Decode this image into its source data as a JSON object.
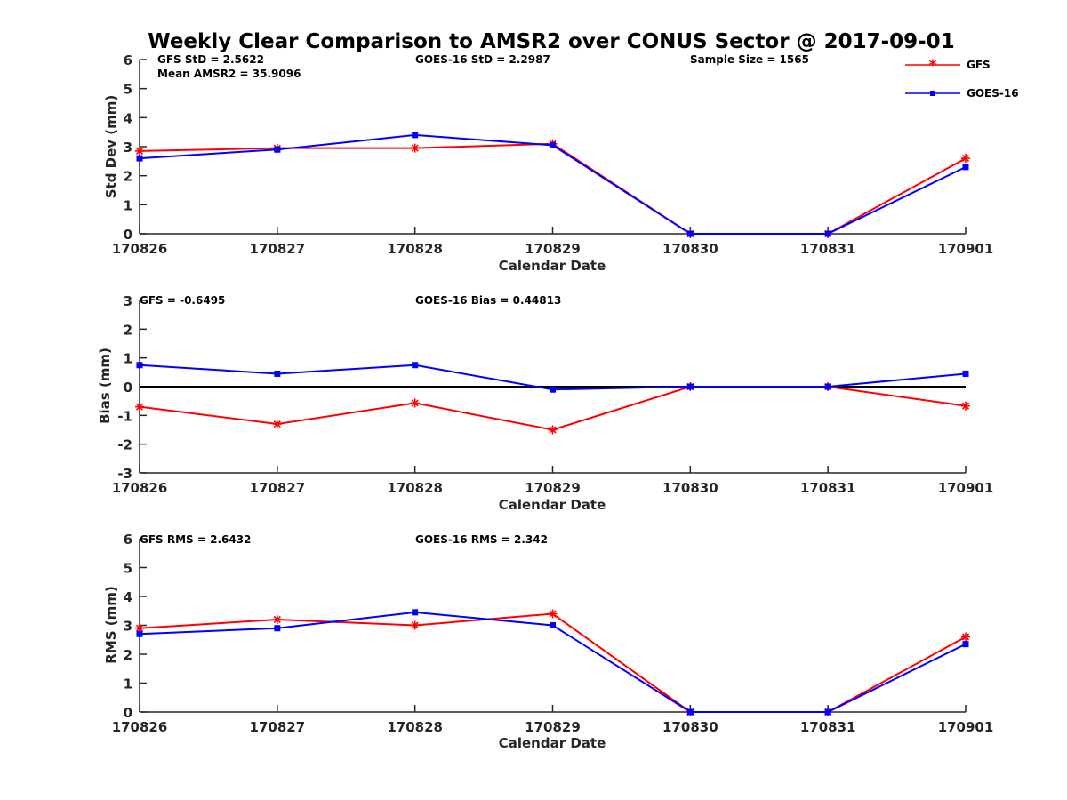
{
  "chart_data": {
    "title": "Weekly Clear Comparison to AMSR2 over CONUS Sector @ 2017-09-01",
    "legend": {
      "placement": "top-right",
      "entries": [
        {
          "name": "GFS",
          "color": "#ff0000",
          "marker": "asterisk"
        },
        {
          "name": "GOES-16",
          "color": "#0000ff",
          "marker": "square"
        }
      ]
    },
    "panels": [
      {
        "type": "line",
        "categories": [
          "170826",
          "170827",
          "170828",
          "170829",
          "170830",
          "170831",
          "170901"
        ],
        "xlabel": "Calendar Date",
        "ylabel": "Std Dev (mm)",
        "ylim": [
          0,
          6
        ],
        "yticks": [
          "0",
          "1",
          "2",
          "3",
          "4",
          "5",
          "6"
        ],
        "zero_line": false,
        "series": [
          {
            "name": "GFS",
            "color": "#ff0000",
            "values": [
              2.85,
              2.95,
              2.95,
              3.1,
              0,
              0,
              2.6
            ]
          },
          {
            "name": "GOES-16",
            "color": "#0000ff",
            "values": [
              2.6,
              2.9,
              3.4,
              3.05,
              0,
              0,
              2.3
            ]
          }
        ],
        "annotations": [
          "GFS StD = 2.5622",
          "Mean AMSR2 = 35.9096",
          "GOES-16 StD = 2.2987",
          "Sample Size = 1565"
        ]
      },
      {
        "type": "line",
        "categories": [
          "170826",
          "170827",
          "170828",
          "170829",
          "170830",
          "170831",
          "170901"
        ],
        "xlabel": "Calendar Date",
        "ylabel": "Bias (mm)",
        "ylim": [
          -3,
          3
        ],
        "yticks": [
          "-3",
          "-2",
          "-1",
          "0",
          "1",
          "2",
          "3"
        ],
        "zero_line": true,
        "series": [
          {
            "name": "GFS",
            "color": "#ff0000",
            "values": [
              -0.7,
              -1.3,
              -0.57,
              -1.5,
              0,
              0,
              -0.67
            ]
          },
          {
            "name": "GOES-16",
            "color": "#0000ff",
            "values": [
              0.75,
              0.45,
              0.75,
              -0.1,
              0,
              0,
              0.45
            ]
          }
        ],
        "annotations": [
          "GFS = -0.6495",
          "GOES-16 Bias  = 0.44813"
        ]
      },
      {
        "type": "line",
        "categories": [
          "170826",
          "170827",
          "170828",
          "170829",
          "170830",
          "170831",
          "170901"
        ],
        "xlabel": "Calendar Date",
        "ylabel": "RMS (mm)",
        "ylim": [
          0,
          6
        ],
        "yticks": [
          "0",
          "1",
          "2",
          "3",
          "4",
          "5",
          "6"
        ],
        "zero_line": false,
        "series": [
          {
            "name": "GFS",
            "color": "#ff0000",
            "values": [
              2.9,
              3.2,
              3.0,
              3.4,
              0,
              0,
              2.6
            ]
          },
          {
            "name": "GOES-16",
            "color": "#0000ff",
            "values": [
              2.7,
              2.9,
              3.45,
              3.0,
              0,
              0,
              2.35
            ]
          }
        ],
        "annotations": [
          "GFS RMS = 2.6432",
          "GOES-16 RMS = 2.342"
        ]
      }
    ]
  }
}
